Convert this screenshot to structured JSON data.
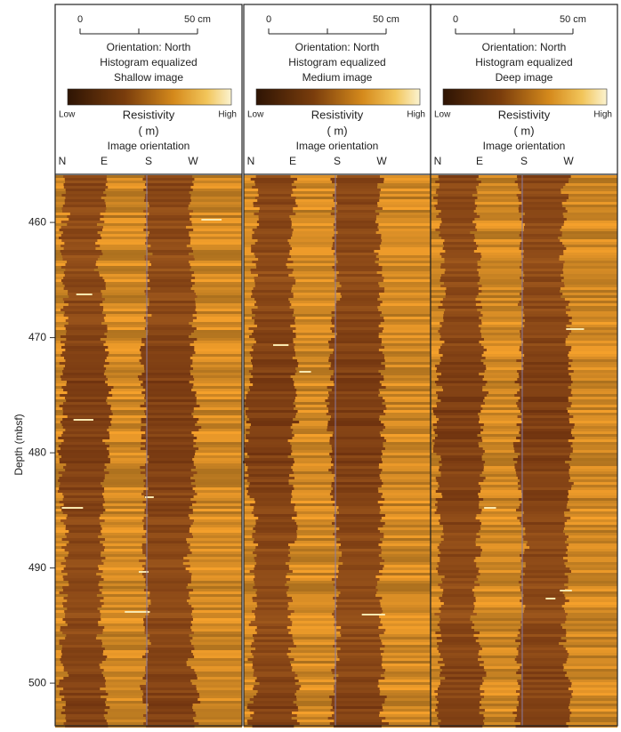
{
  "depth_axis": {
    "label": "Depth (mbsf)",
    "lim": [
      455.9,
      503.7
    ],
    "ticks": [
      460,
      470,
      480,
      490,
      500
    ]
  },
  "panels": [
    {
      "scale_labels": [
        "0",
        "50 cm"
      ],
      "lines": [
        "Orientation: North",
        "Histogram equalized",
        "Shallow image"
      ],
      "colorbar": {
        "low": "Low",
        "title": "Resistivity",
        "unit": "( m)",
        "high": "High"
      },
      "orientation_title": "Image orientation",
      "orientation_labels": [
        "N",
        "E",
        "S",
        "W"
      ]
    },
    {
      "scale_labels": [
        "0",
        "50 cm"
      ],
      "lines": [
        "Orientation: North",
        "Histogram equalized",
        "Medium image"
      ],
      "colorbar": {
        "low": "Low",
        "title": "Resistivity",
        "unit": "( m)",
        "high": "High"
      },
      "orientation_title": "Image orientation",
      "orientation_labels": [
        "N",
        "E",
        "S",
        "W"
      ]
    },
    {
      "scale_labels": [
        "0",
        "50 cm"
      ],
      "lines": [
        "Orientation: North",
        "Histogram equalized",
        "Deep image"
      ],
      "colorbar": {
        "low": "Low",
        "title": "Resistivity",
        "unit": "( m)",
        "high": "High"
      },
      "orientation_title": "Image orientation",
      "orientation_labels": [
        "N",
        "E",
        "S",
        "W"
      ]
    }
  ]
}
